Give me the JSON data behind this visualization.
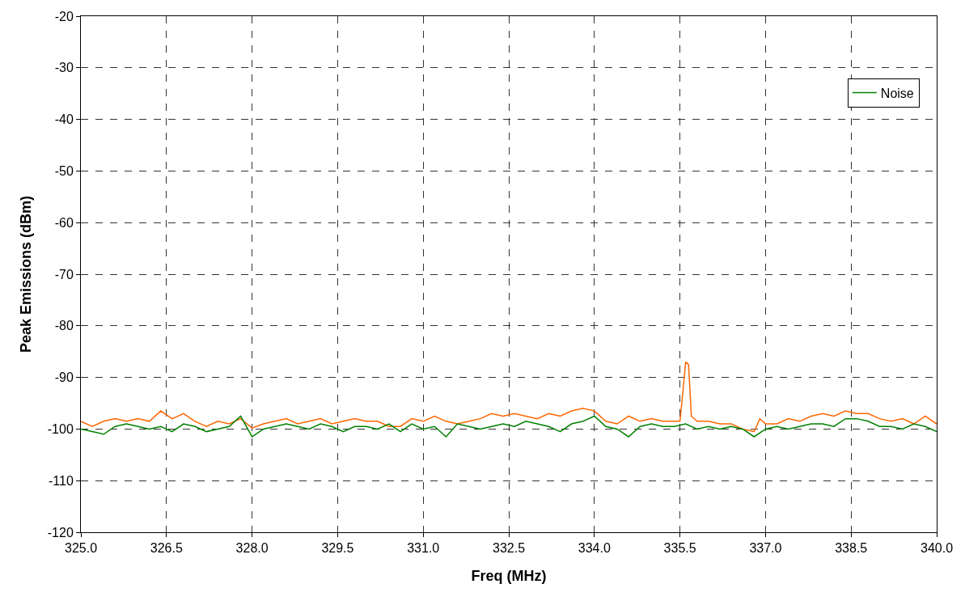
{
  "chart_data": {
    "type": "line",
    "xlabel": "Freq (MHz)",
    "ylabel": "Peak Emissions (dBm)",
    "xlim": [
      325.0,
      340.0
    ],
    "xticks": [
      {
        "value": 325.0,
        "label": "325.0"
      },
      {
        "value": 326.5,
        "label": "326.5"
      },
      {
        "value": 328.0,
        "label": "328.0"
      },
      {
        "value": 329.5,
        "label": "329.5"
      },
      {
        "value": 331.0,
        "label": "331.0"
      },
      {
        "value": 332.5,
        "label": "332.5"
      },
      {
        "value": 334.0,
        "label": "334.0"
      },
      {
        "value": 335.5,
        "label": "335.5"
      },
      {
        "value": 337.0,
        "label": "337.0"
      },
      {
        "value": 338.5,
        "label": "338.5"
      },
      {
        "value": 340.0,
        "label": "340.0"
      }
    ],
    "ylim": [
      -120,
      -20
    ],
    "yticks": [
      -120,
      -110,
      -100,
      -90,
      -80,
      -70,
      -60,
      -50,
      -40,
      -30,
      -20
    ],
    "grid": true,
    "legend": "top right",
    "marker": "none",
    "line_style": "solid",
    "series": [
      {
        "color": "#ff6600",
        "x": [
          325.0,
          325.2,
          325.4,
          325.6,
          325.8,
          326.0,
          326.2,
          326.4,
          326.6,
          326.8,
          327.0,
          327.2,
          327.4,
          327.6,
          327.8,
          328.0,
          328.2,
          328.4,
          328.6,
          328.8,
          329.0,
          329.2,
          329.4,
          329.6,
          329.8,
          330.0,
          330.2,
          330.4,
          330.6,
          330.8,
          331.0,
          331.2,
          331.4,
          331.6,
          331.8,
          332.0,
          332.2,
          332.4,
          332.6,
          332.8,
          333.0,
          333.2,
          333.4,
          333.6,
          333.8,
          334.0,
          334.2,
          334.4,
          334.6,
          334.8,
          335.0,
          335.2,
          335.4,
          335.5,
          335.55,
          335.6,
          335.65,
          335.7,
          335.8,
          336.0,
          336.2,
          336.4,
          336.6,
          336.8,
          336.9,
          337.0,
          337.2,
          337.4,
          337.6,
          337.8,
          338.0,
          338.2,
          338.4,
          338.6,
          338.8,
          339.0,
          339.2,
          339.4,
          339.6,
          339.8,
          340.0
        ],
        "values": [
          -98.5,
          -99.5,
          -98.5,
          -98,
          -98.5,
          -98,
          -98.5,
          -96.5,
          -98,
          -97,
          -98.5,
          -99.5,
          -98.5,
          -99,
          -98,
          -99.8,
          -99,
          -98.5,
          -98,
          -99,
          -98.5,
          -98,
          -99,
          -98.5,
          -98,
          -98.5,
          -98.5,
          -99.5,
          -99.5,
          -98,
          -98.5,
          -97.5,
          -98.5,
          -99,
          -98.5,
          -98,
          -97,
          -97.5,
          -97,
          -97.5,
          -98,
          -97,
          -97.5,
          -96.5,
          -96,
          -96.5,
          -98.5,
          -99,
          -97.5,
          -98.5,
          -98,
          -98.5,
          -98.5,
          -98.5,
          -93,
          -87,
          -87.5,
          -97.5,
          -98.5,
          -98.5,
          -99,
          -99,
          -100,
          -100.5,
          -98,
          -99,
          -99,
          -98,
          -98.5,
          -97.5,
          -97,
          -97.5,
          -96.5,
          -97,
          -97,
          -98,
          -98.5,
          -98,
          -99,
          -97.5,
          -99
        ]
      },
      {
        "name": "Noise",
        "color": "#008000",
        "x": [
          325.0,
          325.2,
          325.4,
          325.6,
          325.8,
          326.0,
          326.2,
          326.4,
          326.6,
          326.8,
          327.0,
          327.2,
          327.4,
          327.6,
          327.8,
          328.0,
          328.2,
          328.4,
          328.6,
          328.8,
          329.0,
          329.2,
          329.4,
          329.6,
          329.8,
          330.0,
          330.2,
          330.4,
          330.6,
          330.8,
          331.0,
          331.2,
          331.4,
          331.6,
          331.8,
          332.0,
          332.2,
          332.4,
          332.6,
          332.8,
          333.0,
          333.2,
          333.4,
          333.6,
          333.8,
          334.0,
          334.2,
          334.4,
          334.6,
          334.8,
          335.0,
          335.2,
          335.4,
          335.6,
          335.8,
          336.0,
          336.2,
          336.4,
          336.6,
          336.8,
          337.0,
          337.2,
          337.4,
          337.6,
          337.8,
          338.0,
          338.2,
          338.4,
          338.6,
          338.8,
          339.0,
          339.2,
          339.4,
          339.6,
          339.8,
          340.0
        ],
        "values": [
          -100,
          -100.5,
          -101,
          -99.5,
          -99,
          -99.5,
          -100,
          -99.5,
          -100.5,
          -99,
          -99.5,
          -100.5,
          -100,
          -99.5,
          -97.5,
          -101.5,
          -100,
          -99.5,
          -99,
          -99.5,
          -100,
          -99,
          -99.5,
          -100.5,
          -99.5,
          -99.5,
          -100,
          -99,
          -100.5,
          -99,
          -100,
          -99.5,
          -101.5,
          -99,
          -99.5,
          -100,
          -99.5,
          -99,
          -99.5,
          -98.5,
          -99,
          -99.5,
          -100.5,
          -99,
          -98.5,
          -97.5,
          -99.5,
          -100,
          -101.5,
          -99.5,
          -99,
          -99.5,
          -99.5,
          -99,
          -100,
          -99.5,
          -100,
          -99.5,
          -100,
          -101.5,
          -100,
          -99.5,
          -100,
          -99.5,
          -99,
          -99,
          -99.5,
          -98,
          -98,
          -98.5,
          -99.5,
          -99.5,
          -100,
          -99,
          -99.5,
          -100.5
        ]
      }
    ]
  }
}
